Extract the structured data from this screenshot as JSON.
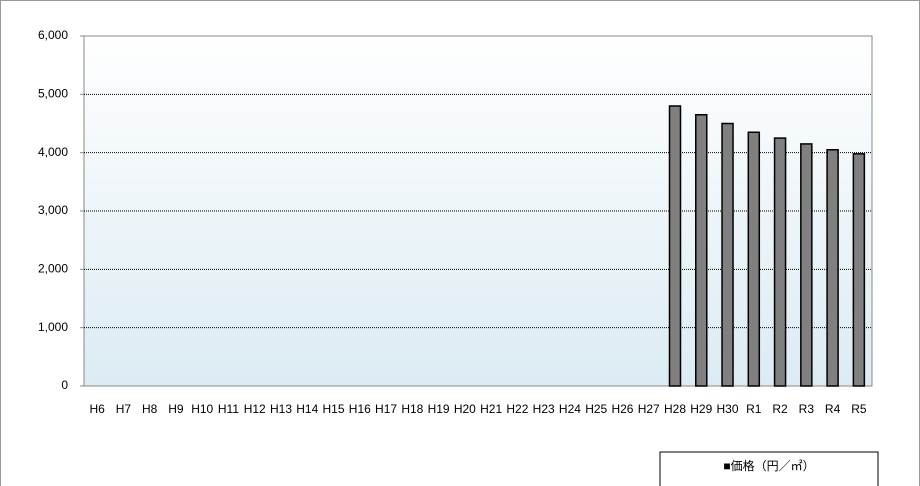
{
  "chart_data": {
    "type": "bar",
    "categories": [
      "H6",
      "H7",
      "H8",
      "H9",
      "H10",
      "H11",
      "H12",
      "H13",
      "H14",
      "H15",
      "H16",
      "H17",
      "H18",
      "H19",
      "H20",
      "H21",
      "H22",
      "H23",
      "H24",
      "H25",
      "H26",
      "H27",
      "H28",
      "H29",
      "H30",
      "R1",
      "R2",
      "R3",
      "R4",
      "R5"
    ],
    "series": [
      {
        "name": "■価格（円／㎡）",
        "color": "#808080",
        "values": [
          null,
          null,
          null,
          null,
          null,
          null,
          null,
          null,
          null,
          null,
          null,
          null,
          null,
          null,
          null,
          null,
          null,
          null,
          null,
          null,
          null,
          null,
          4800,
          4650,
          4500,
          4350,
          4250,
          4150,
          4050,
          3980
        ]
      }
    ],
    "ylim": [
      0,
      6000
    ],
    "yticks": [
      0,
      {
        "value": 1000,
        "label": "1,000"
      },
      {
        "value": 2000,
        "label": "2,000"
      },
      {
        "value": 3000,
        "label": "3,000"
      },
      {
        "value": 4000,
        "label": "4,000"
      },
      {
        "value": 5000,
        "label": "5,000"
      },
      {
        "value": 6000,
        "label": "6,000"
      }
    ],
    "grid": true,
    "legend": "bottom-right"
  }
}
